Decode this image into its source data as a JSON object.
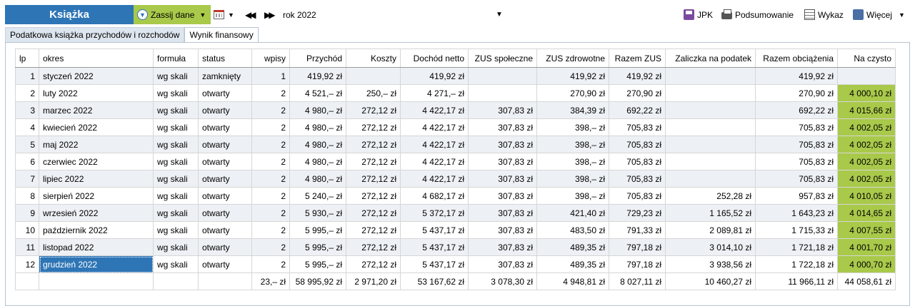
{
  "toolbar": {
    "title": "Książka",
    "import_label": "Zassij dane",
    "year_label": "rok 2022",
    "jpk_label": "JPK",
    "summary_label": "Podsumowanie",
    "list_label": "Wykaz",
    "more_label": "Więcej"
  },
  "tabs": [
    {
      "label": "Podatkowa książka przychodów i rozchodów"
    },
    {
      "label": "Wynik finansowy"
    }
  ],
  "columns": [
    "lp",
    "okres",
    "formuła",
    "status",
    "wpisy",
    "Przychód",
    "Koszty",
    "Dochód netto",
    "ZUS społeczne",
    "ZUS zdrowotne",
    "Razem ZUS",
    "Zaliczka na podatek",
    "Razem obciążenia",
    "Na czysto"
  ],
  "rows": [
    [
      "1",
      "styczeń 2022",
      "wg skali",
      "zamknięty",
      "1",
      "419,92 zł",
      "",
      "419,92 zł",
      "",
      "419,92 zł",
      "419,92 zł",
      "",
      "419,92 zł",
      ""
    ],
    [
      "2",
      "luty 2022",
      "wg skali",
      "otwarty",
      "2",
      "4 521,– zł",
      "250,– zł",
      "4 271,– zł",
      "",
      "270,90 zł",
      "270,90 zł",
      "",
      "270,90 zł",
      "4 000,10 zł"
    ],
    [
      "3",
      "marzec 2022",
      "wg skali",
      "otwarty",
      "2",
      "4 980,– zł",
      "272,12 zł",
      "4 422,17 zł",
      "307,83 zł",
      "384,39 zł",
      "692,22 zł",
      "",
      "692,22 zł",
      "4 015,66 zł"
    ],
    [
      "4",
      "kwiecień 2022",
      "wg skali",
      "otwarty",
      "2",
      "4 980,– zł",
      "272,12 zł",
      "4 422,17 zł",
      "307,83 zł",
      "398,– zł",
      "705,83 zł",
      "",
      "705,83 zł",
      "4 002,05 zł"
    ],
    [
      "5",
      "maj 2022",
      "wg skali",
      "otwarty",
      "2",
      "4 980,– zł",
      "272,12 zł",
      "4 422,17 zł",
      "307,83 zł",
      "398,– zł",
      "705,83 zł",
      "",
      "705,83 zł",
      "4 002,05 zł"
    ],
    [
      "6",
      "czerwiec 2022",
      "wg skali",
      "otwarty",
      "2",
      "4 980,– zł",
      "272,12 zł",
      "4 422,17 zł",
      "307,83 zł",
      "398,– zł",
      "705,83 zł",
      "",
      "705,83 zł",
      "4 002,05 zł"
    ],
    [
      "7",
      "lipiec 2022",
      "wg skali",
      "otwarty",
      "2",
      "4 980,– zł",
      "272,12 zł",
      "4 422,17 zł",
      "307,83 zł",
      "398,– zł",
      "705,83 zł",
      "",
      "705,83 zł",
      "4 002,05 zł"
    ],
    [
      "8",
      "sierpień 2022",
      "wg skali",
      "otwarty",
      "2",
      "5 240,– zł",
      "272,12 zł",
      "4 682,17 zł",
      "307,83 zł",
      "398,– zł",
      "705,83 zł",
      "252,28 zł",
      "957,83 zł",
      "4 010,05 zł"
    ],
    [
      "9",
      "wrzesień 2022",
      "wg skali",
      "otwarty",
      "2",
      "5 930,– zł",
      "272,12 zł",
      "5 372,17 zł",
      "307,83 zł",
      "421,40 zł",
      "729,23 zł",
      "1 165,52 zł",
      "1 643,23 zł",
      "4 014,65 zł"
    ],
    [
      "10",
      "październik 2022",
      "wg skali",
      "otwarty",
      "2",
      "5 995,– zł",
      "272,12 zł",
      "5 437,17 zł",
      "307,83 zł",
      "483,50 zł",
      "791,33 zł",
      "2 089,81 zł",
      "1 715,33 zł",
      "4 007,55 zł"
    ],
    [
      "11",
      "listopad 2022",
      "wg skali",
      "otwarty",
      "2",
      "5 995,– zł",
      "272,12 zł",
      "5 437,17 zł",
      "307,83 zł",
      "489,35 zł",
      "797,18 zł",
      "3 014,10 zł",
      "1 721,18 zł",
      "4 001,70 zł"
    ],
    [
      "12",
      "grudzień 2022",
      "wg skali",
      "otwarty",
      "2",
      "5 995,– zł",
      "272,12 zł",
      "5 437,17 zł",
      "307,83 zł",
      "489,35 zł",
      "797,18 zł",
      "3 938,56 zł",
      "1 722,18 zł",
      "4 000,70 zł"
    ]
  ],
  "totals": [
    "",
    "",
    "",
    "",
    "23,– zł",
    "58 995,92 zł",
    "2 971,20 zł",
    "53 167,62 zł",
    "3 078,30 zł",
    "4 948,81 zł",
    "8 027,11 zł",
    "10 460,27 zł",
    "11 966,11 zł",
    "44 058,61 zł"
  ],
  "colors": {
    "title_bg": "#2e75b6",
    "accent_green": "#a9c94a",
    "selected_bg": "#2e75b6",
    "odd_row_bg": "#edf1f5"
  },
  "icons": [
    "download-circle-icon",
    "calendar-icon",
    "rewind-icon",
    "fast-forward-icon",
    "chevron-down-icon",
    "save-disk-icon",
    "printer-icon",
    "list-icon",
    "more-icon"
  ]
}
